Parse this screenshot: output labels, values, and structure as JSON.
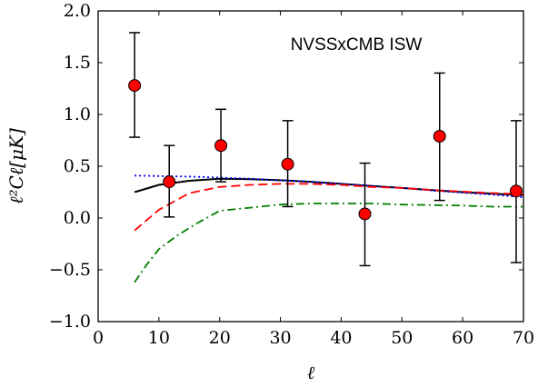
{
  "chart_data": {
    "type": "scatter",
    "title": "",
    "annotation": "NVSSxCMB ISW",
    "xlabel": "ℓ",
    "ylabel": "ℓ²Cℓ[μK]",
    "xlim": [
      0,
      70
    ],
    "ylim": [
      -1.0,
      2.0
    ],
    "xticks": [
      0,
      10,
      20,
      30,
      40,
      50,
      60,
      70
    ],
    "xtick_labels": [
      "0",
      "10",
      "20",
      "30",
      "40",
      "50",
      "60",
      "70"
    ],
    "yticks": [
      -1.0,
      -0.5,
      0.0,
      0.5,
      1.0,
      1.5,
      2.0
    ],
    "ytick_labels": [
      "−1.0",
      "−0.5",
      "0.0",
      "0.5",
      "1.0",
      "1.5",
      "2.0"
    ],
    "grid": false,
    "points": {
      "x": [
        6,
        11.7,
        20.2,
        31.2,
        43.9,
        56.2,
        68.8
      ],
      "y": [
        1.28,
        0.35,
        0.7,
        0.52,
        0.04,
        0.79,
        0.26
      ],
      "yerr_low": [
        0.78,
        0.01,
        0.35,
        0.11,
        -0.46,
        0.17,
        -0.43
      ],
      "yerr_high": [
        1.79,
        0.7,
        1.05,
        0.94,
        0.53,
        1.4,
        0.94
      ],
      "color": "#ff0000"
    },
    "series": [
      {
        "style": "solid",
        "color": "#000000",
        "x": [
          6,
          10,
          15,
          20,
          25,
          30,
          35,
          40,
          45,
          50,
          55,
          60,
          65,
          70
        ],
        "y": [
          0.25,
          0.32,
          0.36,
          0.38,
          0.375,
          0.365,
          0.35,
          0.33,
          0.31,
          0.29,
          0.27,
          0.25,
          0.235,
          0.22
        ]
      },
      {
        "style": "dotted",
        "color": "#0000ff",
        "x": [
          6,
          10,
          15,
          20,
          25,
          30,
          35,
          40,
          45,
          50,
          55,
          60,
          65,
          70
        ],
        "y": [
          0.41,
          0.405,
          0.4,
          0.39,
          0.38,
          0.365,
          0.35,
          0.33,
          0.31,
          0.29,
          0.265,
          0.245,
          0.225,
          0.2
        ]
      },
      {
        "style": "dashed",
        "color": "#ff0000",
        "x": [
          6,
          10,
          15,
          20,
          25,
          30,
          35,
          40,
          45,
          50,
          55,
          60,
          65,
          70
        ],
        "y": [
          -0.12,
          0.08,
          0.24,
          0.3,
          0.32,
          0.33,
          0.33,
          0.32,
          0.3,
          0.29,
          0.27,
          0.255,
          0.24,
          0.23
        ]
      },
      {
        "style": "dashdot",
        "color": "#008000",
        "x": [
          6,
          8,
          10,
          13,
          16,
          20,
          25,
          30,
          35,
          40,
          45,
          50,
          55,
          60,
          65,
          70
        ],
        "y": [
          -0.62,
          -0.45,
          -0.3,
          -0.17,
          -0.06,
          0.07,
          0.1,
          0.13,
          0.14,
          0.14,
          0.14,
          0.13,
          0.125,
          0.12,
          0.11,
          0.11
        ]
      }
    ]
  }
}
